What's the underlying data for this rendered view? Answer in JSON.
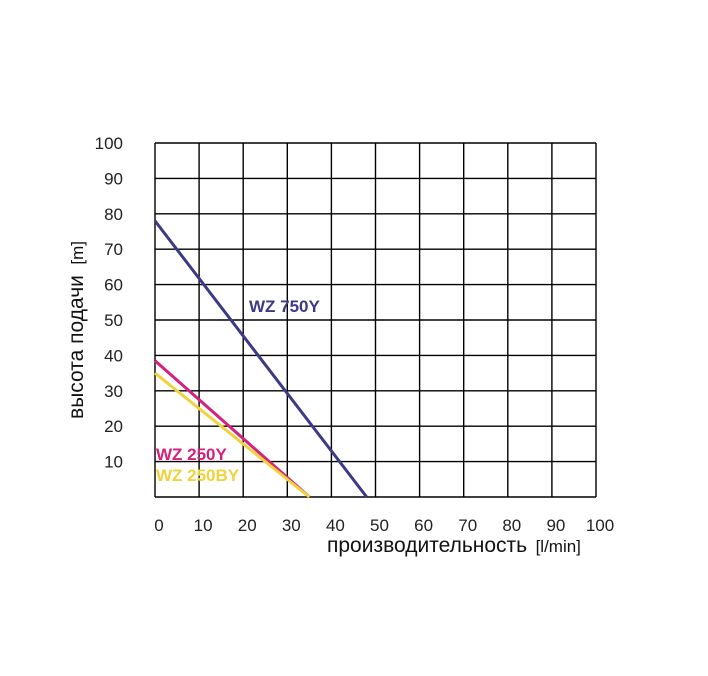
{
  "chart_data": {
    "type": "line",
    "title": "",
    "ylabel": "высота подачи",
    "ylabel_unit": "[m]",
    "xlabel": "производительность",
    "xlabel_unit": "[l/min]",
    "xlim": [
      0,
      100
    ],
    "ylim": [
      0,
      100
    ],
    "x_ticks": [
      "0",
      "10",
      "20",
      "30",
      "40",
      "50",
      "60",
      "70",
      "80",
      "90",
      "100"
    ],
    "y_ticks": [
      "10",
      "20",
      "30",
      "40",
      "50",
      "60",
      "70",
      "80",
      "90",
      "100"
    ],
    "grid": true,
    "legend": "inline labels",
    "series": [
      {
        "name": "WZ 750Y",
        "color": "#3c3a85",
        "x": [
          0,
          48
        ],
        "y": [
          78,
          0
        ]
      },
      {
        "name": "WZ 250Y",
        "color": "#d4207f",
        "x": [
          0,
          35
        ],
        "y": [
          38.5,
          0
        ]
      },
      {
        "name": "WZ 250BY",
        "color": "#f0d23a",
        "x": [
          0,
          35
        ],
        "y": [
          35,
          0
        ]
      }
    ]
  }
}
